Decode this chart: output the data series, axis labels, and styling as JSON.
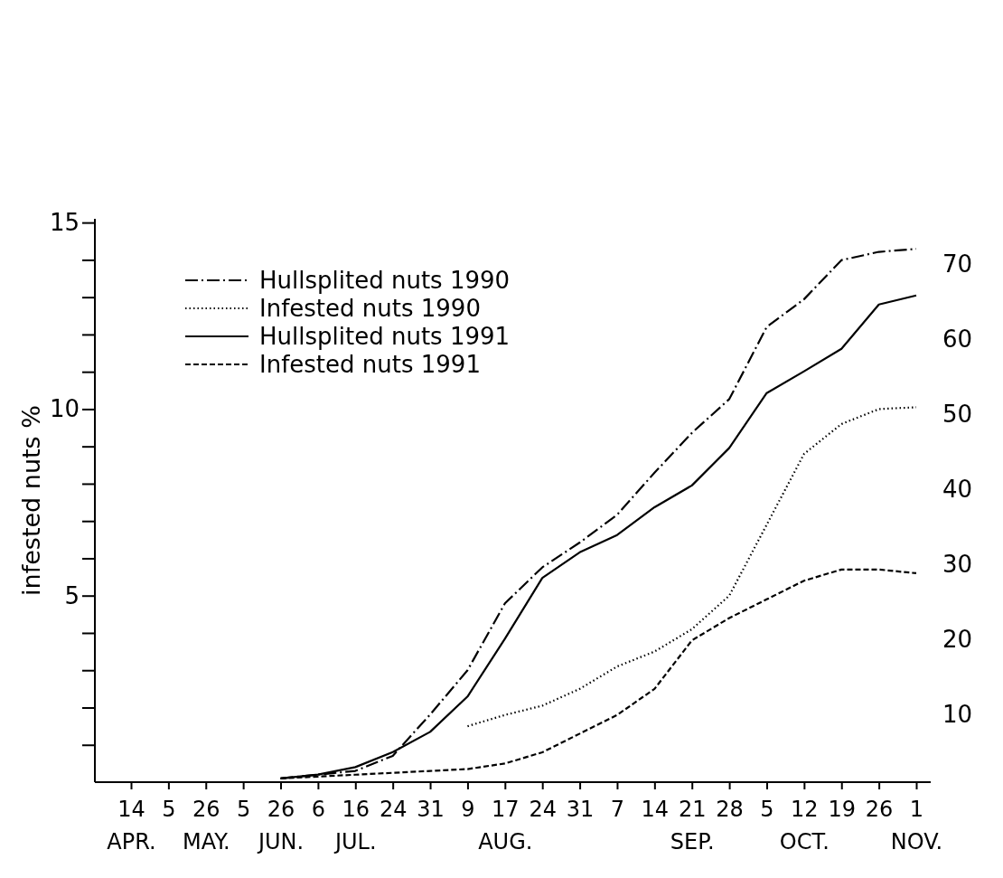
{
  "chart_data": {
    "type": "line",
    "ylabel": "infested nuts %",
    "categories": [
      "14\nAPR.",
      "5",
      "26\nMAY.",
      "5",
      "26\nJUN.",
      "6",
      "16\nJUL.",
      "24",
      "31",
      "9",
      "17\nAUG.",
      "24",
      "31",
      "7",
      "14",
      "21\nSEP.",
      "28",
      "5",
      "12\nOCT.",
      "19",
      "26",
      "1\nNOV."
    ],
    "series": [
      {
        "name": "Hullsplited nuts 1990",
        "color": "#000000",
        "line_style": "dashdot",
        "axis": "y2",
        "values": [
          null,
          null,
          null,
          null,
          1.5,
          2,
          2.5,
          4.5,
          10,
          15.9,
          24.8,
          29.6,
          32.9,
          36.6,
          42.2,
          47.5,
          52,
          61.6,
          65.3,
          70.5,
          71.6,
          72
        ]
      },
      {
        "name": "Infested nuts 1990",
        "color": "#000000",
        "line_style": "dotted",
        "values": [
          null,
          null,
          null,
          null,
          null,
          null,
          null,
          null,
          null,
          1.5,
          1.8,
          2.05,
          2.5,
          3.1,
          3.5,
          4.1,
          5,
          6.9,
          8.8,
          9.6,
          10,
          10.05
        ]
      },
      {
        "name": "Hullsplited nuts 1991",
        "color": "#000000",
        "line_style": "solid",
        "axis": "y2",
        "values": [
          null,
          null,
          null,
          null,
          1.5,
          2,
          3,
          5,
          7.7,
          12.4,
          20.1,
          28.2,
          31.6,
          33.9,
          37.6,
          40.5,
          45.5,
          52.8,
          55.7,
          58.7,
          64.6,
          65.8
        ]
      },
      {
        "name": "Infested nuts 1991",
        "color": "#000000",
        "line_style": "dashed",
        "values": [
          null,
          null,
          null,
          null,
          0.1,
          0.15,
          0.2,
          0.25,
          0.3,
          0.35,
          0.5,
          0.8,
          1.3,
          1.8,
          2.5,
          3.8,
          4.4,
          4.9,
          5.4,
          5.7,
          5.7,
          5.6
        ]
      }
    ],
    "ylim": [
      0,
      15.1
    ],
    "yticks": [
      {
        "value": 1,
        "label": null
      },
      {
        "value": 2,
        "label": null
      },
      {
        "value": 3,
        "label": null
      },
      {
        "value": 4,
        "label": null
      },
      5,
      {
        "value": 6,
        "label": null
      },
      {
        "value": 7,
        "label": null
      },
      {
        "value": 8,
        "label": null
      },
      {
        "value": 9,
        "label": null
      },
      10,
      {
        "value": 11,
        "label": null
      },
      {
        "value": 12,
        "label": null
      },
      {
        "value": 13,
        "label": null
      },
      {
        "value": 14,
        "label": null
      },
      15
    ],
    "y2lim": [
      1,
      76
    ],
    "y2ticks": [
      10,
      20,
      30,
      40,
      50,
      60,
      70
    ],
    "legend": "top left",
    "grid": false
  }
}
